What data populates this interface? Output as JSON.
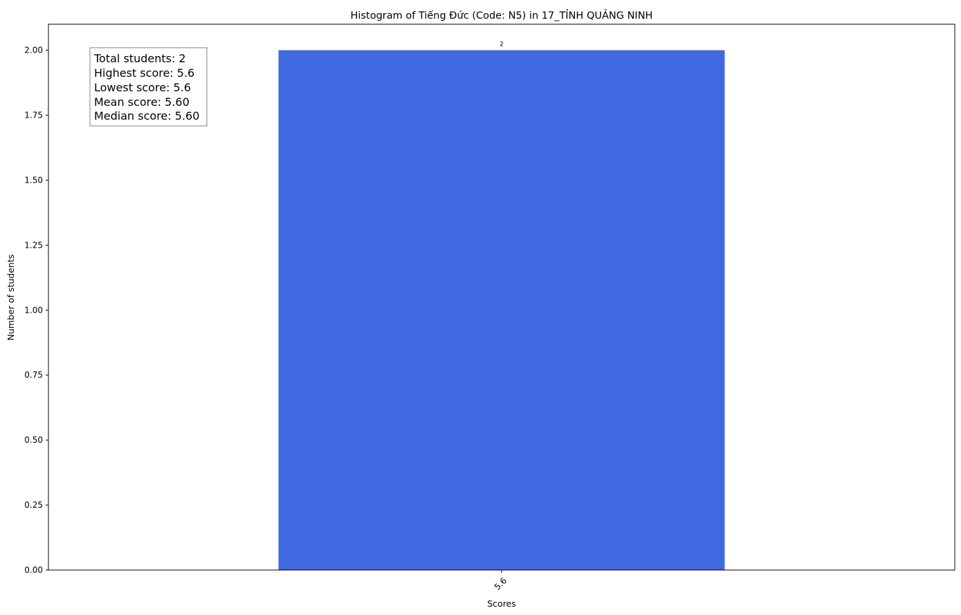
{
  "chart_data": {
    "type": "bar",
    "title": "Histogram of Tiếng Đức (Code: N5) in 17_TỈNH QUẢNG NINH",
    "xlabel": "Scores",
    "ylabel": "Number of students",
    "categories": [
      "5.6"
    ],
    "values": [
      2
    ],
    "data_labels": [
      "2"
    ],
    "ylim": [
      0,
      2.1
    ],
    "yticks": [
      "0.00",
      "0.25",
      "0.50",
      "0.75",
      "1.00",
      "1.25",
      "1.50",
      "1.75",
      "2.00"
    ],
    "ytick_values": [
      0,
      0.25,
      0.5,
      0.75,
      1.0,
      1.25,
      1.5,
      1.75,
      2.0
    ],
    "bar_color": "#4169e1",
    "grid": false,
    "stats_box": {
      "position": "top-left",
      "lines": [
        "Total students: 2",
        "Highest score: 5.6",
        "Lowest score: 5.6",
        "Mean score: 5.60",
        "Median score: 5.60"
      ]
    }
  }
}
